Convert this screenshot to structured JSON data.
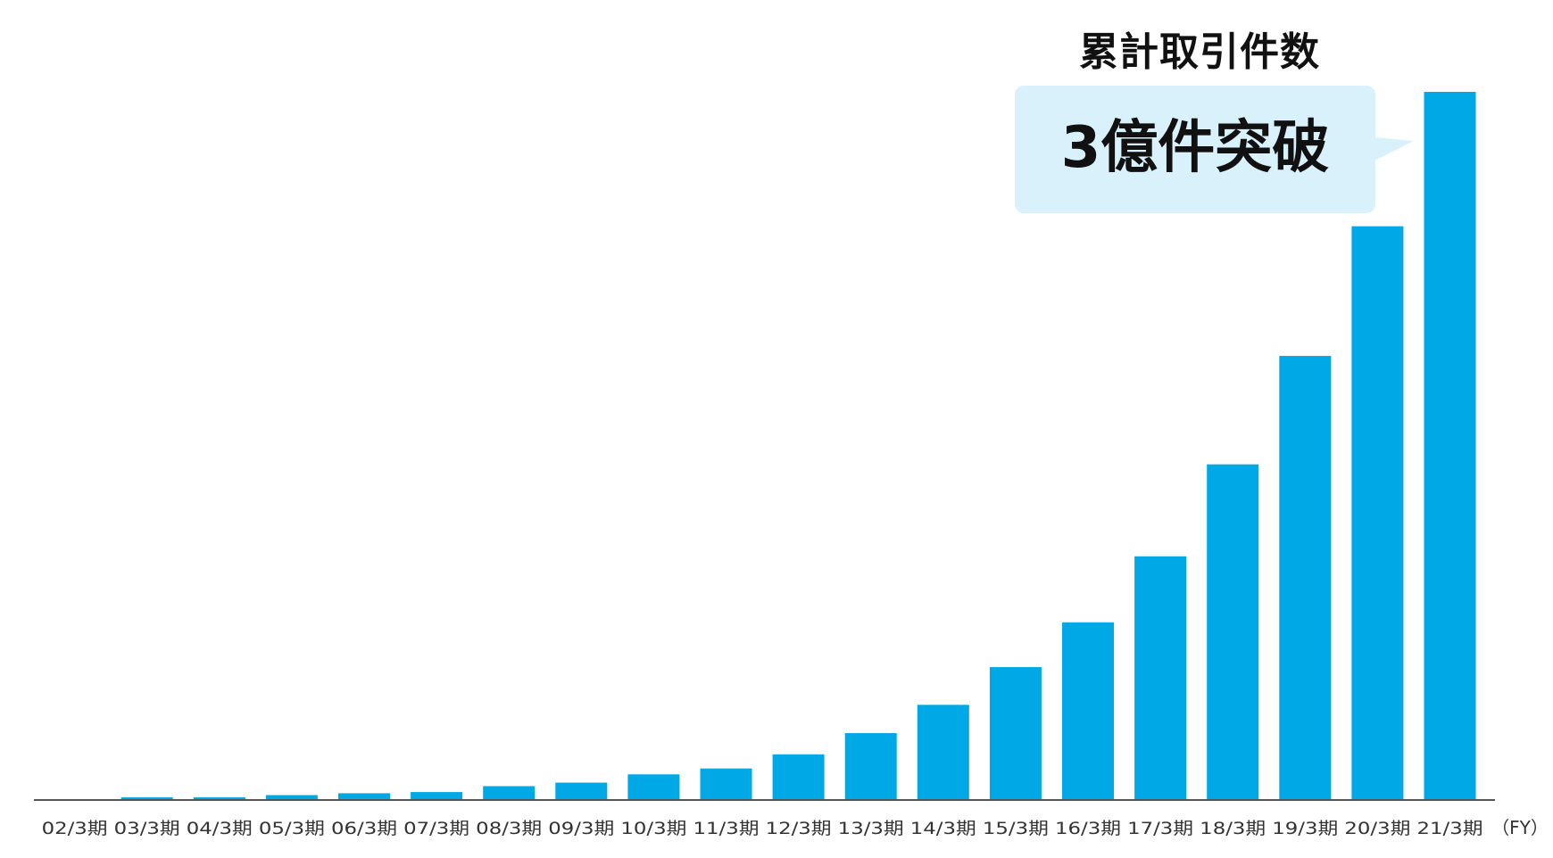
{
  "chart_data": {
    "type": "bar",
    "title": "累計取引件数",
    "annotation": "3億件突破",
    "x_unit_label": "（FY）",
    "categories": [
      "02/3期",
      "03/3期",
      "04/3期",
      "05/3期",
      "06/3期",
      "07/3期",
      "08/3期",
      "09/3期",
      "10/3期",
      "11/3期",
      "12/3期",
      "13/3期",
      "14/3期",
      "15/3期",
      "16/3期",
      "17/3期",
      "18/3期",
      "19/3期",
      "20/3期",
      "21/3期"
    ],
    "values": [
      0,
      0.8,
      0.8,
      1.7,
      2.5,
      3,
      5.5,
      7,
      10.5,
      13,
      19,
      28,
      40,
      56,
      75,
      103,
      142,
      188,
      243,
      300
    ],
    "ylim": [
      0,
      300
    ],
    "grid": false,
    "y_axis_shown": false,
    "colors": {
      "bar": "#00a9e6",
      "callout": "#d9f1fa",
      "axis": "#555555",
      "label": "#333333"
    }
  }
}
